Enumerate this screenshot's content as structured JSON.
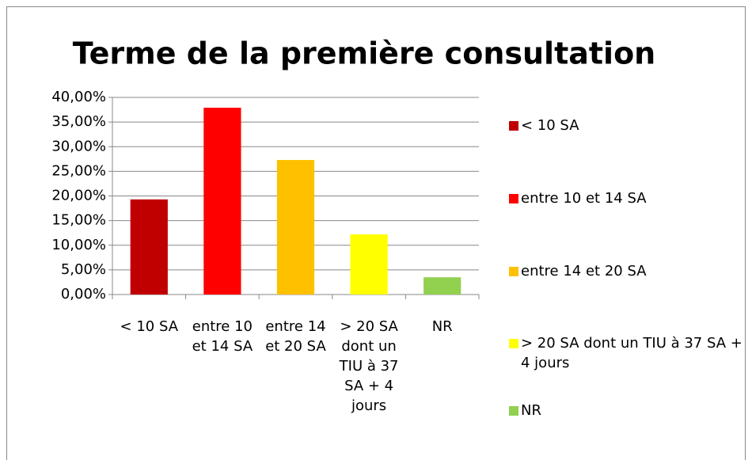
{
  "chart_data": {
    "type": "bar",
    "title": "Terme de la première consultation",
    "categories": [
      "< 10 SA",
      "entre 10 et 14 SA",
      "entre 14 et 20 SA",
      "> 20 SA dont un TIU à 37 SA + 4 jours",
      "NR"
    ],
    "values": [
      19.3,
      37.9,
      27.3,
      12.2,
      3.5
    ],
    "colors": [
      "#c00000",
      "#ff0000",
      "#ffc000",
      "#ffff00",
      "#92d050"
    ],
    "ylim": [
      0,
      40
    ],
    "yticks": [
      {
        "value": 0,
        "label": "0,00%"
      },
      {
        "value": 5,
        "label": "5,00%"
      },
      {
        "value": 10,
        "label": "10,00%"
      },
      {
        "value": 15,
        "label": "15,00%"
      },
      {
        "value": 20,
        "label": "20,00%"
      },
      {
        "value": 25,
        "label": "25,00%"
      },
      {
        "value": 30,
        "label": "30,00%"
      },
      {
        "value": 35,
        "label": "35,00%"
      },
      {
        "value": 40,
        "label": "40,00%"
      }
    ],
    "grid": true,
    "legend": "right"
  }
}
